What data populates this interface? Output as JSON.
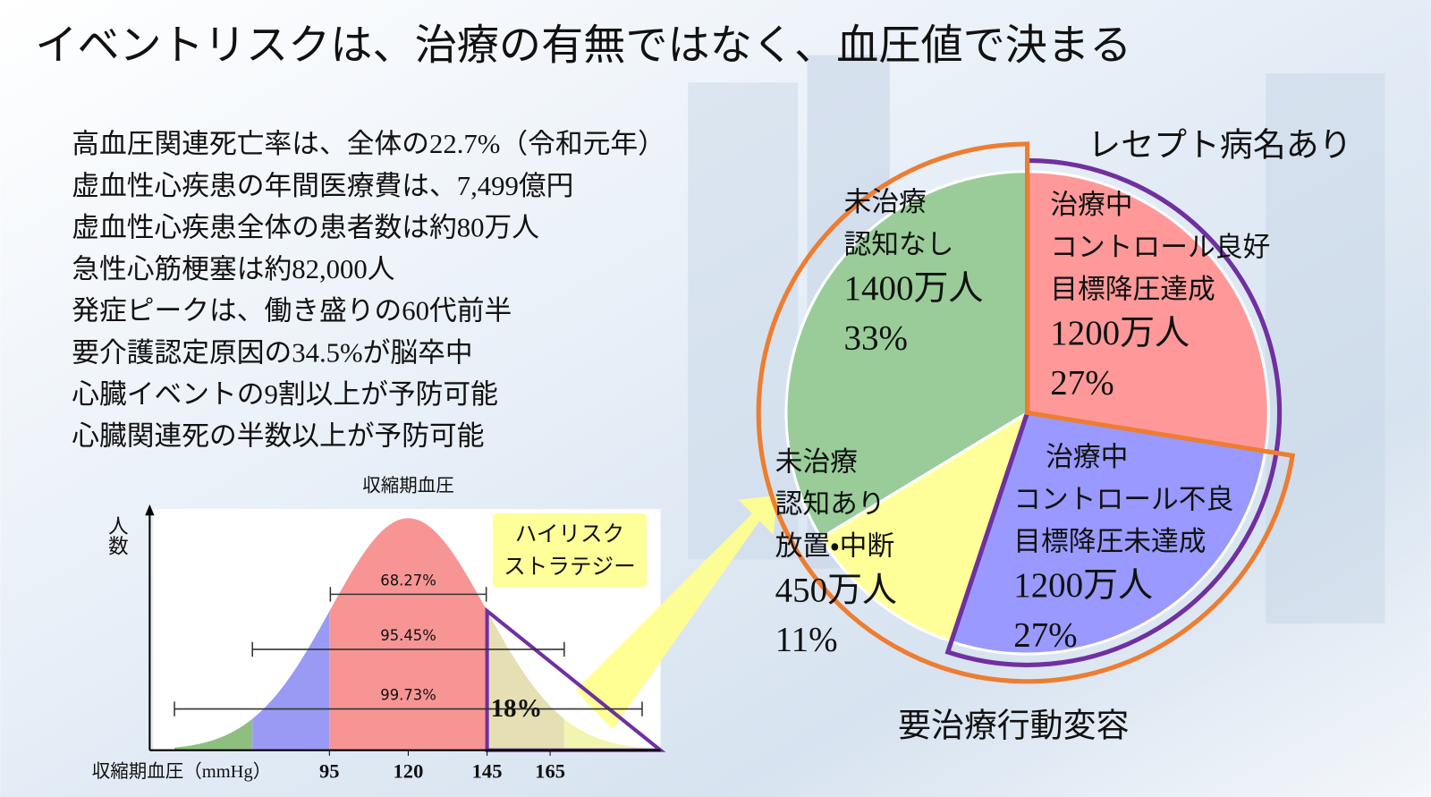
{
  "title": "イベントリスクは、治療の有無ではなく、血圧値で決まる",
  "facts": [
    "高血圧関連死亡率は、全体の22.7%（令和元年）",
    "虚血性心疾患の年間医療費は、7,499億円",
    "虚血性心疾患全体の患者数は約80万人",
    "急性心筋梗塞は約82,000人",
    "発症ピークは、働き盛りの60代前半",
    "要介護認定原因の34.5%が脳卒中",
    "心臓イベントの9割以上が予防可能",
    "心臓関連死の半数以上が予防可能"
  ],
  "chart_data": [
    {
      "type": "distribution",
      "title": "収縮期血圧",
      "y_label": "人数",
      "x_label": "収縮期血圧（mmHg）",
      "xlim": [
        38,
        200
      ],
      "xticks": [
        95,
        120,
        145,
        165
      ],
      "intervals": [
        {
          "value": 68.27,
          "label": "68.27%"
        },
        {
          "value": 95.45,
          "label": "95.45%"
        },
        {
          "value": 99.73,
          "label": "99.73%"
        }
      ],
      "high_risk": {
        "value": 18,
        "label": "18%"
      },
      "annotation": [
        "ハイリスク",
        "ストラテジー"
      ]
    },
    {
      "type": "pie",
      "categories": [
        [
          "治療中",
          "コントロール良好",
          "目標降圧達成"
        ],
        [
          "治療中",
          "コントロール不良",
          "目標降圧未達成"
        ],
        [
          "未治療",
          "認知あり",
          "放置・中断"
        ],
        [
          "未治療",
          "認知なし"
        ]
      ],
      "counts": [
        "1200万人",
        "1200万人",
        "450万人",
        "1400万人"
      ],
      "values": [
        27,
        27,
        11,
        33
      ],
      "value_labels": [
        "27%",
        "27%",
        "11%",
        "33%"
      ],
      "colors": [
        "#ff9999",
        "#9999ff",
        "#ffff99",
        "#99cc99"
      ],
      "annotations": [
        {
          "text": "レセプト病名あり",
          "color": "#7030a0"
        },
        {
          "text": "要治療行動変容",
          "color": "#ed7d31"
        }
      ]
    }
  ]
}
